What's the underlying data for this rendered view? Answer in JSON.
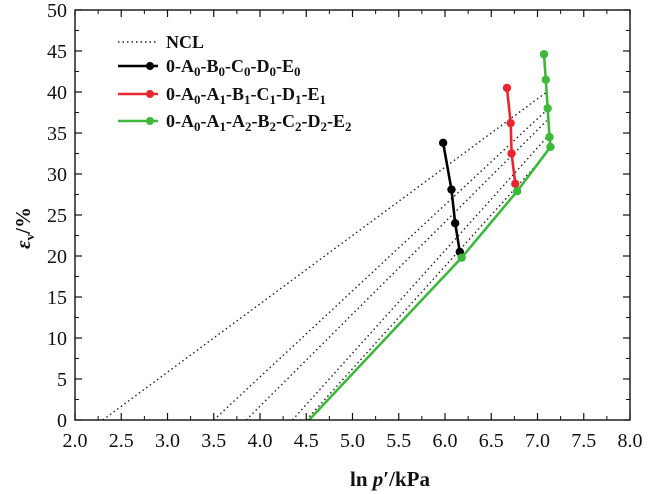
{
  "chart_data": {
    "type": "line",
    "xlabel": "ln p'/kPa",
    "ylabel": "εv/%",
    "xlim": [
      2.0,
      8.0
    ],
    "ylim": [
      0,
      50
    ],
    "xticks": [
      "2.0",
      "2.5",
      "3.0",
      "3.5",
      "4.0",
      "4.5",
      "5.0",
      "5.5",
      "6.0",
      "6.5",
      "7.0",
      "7.5",
      "8.0"
    ],
    "yticks": [
      "0",
      "5",
      "10",
      "15",
      "20",
      "25",
      "30",
      "35",
      "40",
      "45",
      "50"
    ],
    "grid": false,
    "legend_position": "top-left",
    "ncl_lines": {
      "name": "NCL",
      "color": "#222222",
      "lines": [
        {
          "x": [
            2.3,
            7.1
          ],
          "y": [
            0,
            40.0
          ]
        },
        {
          "x": [
            3.5,
            7.12
          ],
          "y": [
            0,
            38.0
          ]
        },
        {
          "x": [
            3.85,
            7.1
          ],
          "y": [
            0,
            36.5
          ]
        },
        {
          "x": [
            4.35,
            7.12
          ],
          "y": [
            0,
            34.7
          ]
        },
        {
          "x": [
            4.5,
            7.1
          ],
          "y": [
            0,
            32.5
          ]
        }
      ]
    },
    "series": [
      {
        "name": "0-A0-B0-C0-D0-E0",
        "color": "#000000",
        "x": [
          5.98,
          6.07,
          6.11,
          6.16
        ],
        "y": [
          33.8,
          28.1,
          24.0,
          20.5
        ]
      },
      {
        "name": "0-A0-A1-B1-C1-D1-E1",
        "color": "#e8262f",
        "x": [
          6.67,
          6.71,
          6.72,
          6.76
        ],
        "y": [
          40.5,
          36.2,
          32.5,
          28.8
        ]
      },
      {
        "name": "0-A0-A1-A2-B2-C2-D2-E2",
        "color": "#3db83b",
        "x": [
          4.53,
          6.18,
          6.78,
          7.14,
          7.13,
          7.11,
          7.09,
          7.07
        ],
        "y": [
          0,
          19.8,
          27.9,
          33.3,
          34.5,
          38.0,
          41.5,
          44.6
        ]
      }
    ]
  }
}
